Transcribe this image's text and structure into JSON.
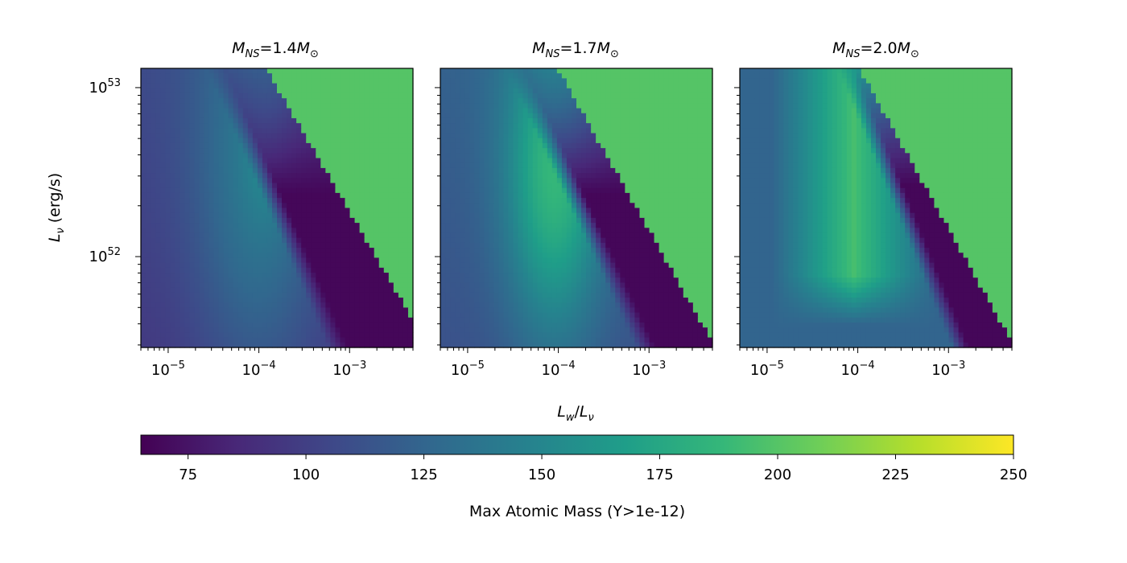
{
  "chart_data": {
    "type": "heatmap",
    "x_scale": "log",
    "y_scale": "log",
    "xlim": [
      5e-06,
      0.005
    ],
    "ylim": [
      2.9e+51,
      1.3e+53
    ],
    "xlabel": {
      "base": "L",
      "sub": "w",
      "slash": "/",
      "base2": "L",
      "sub2": "ν"
    },
    "ylabel": "Lν (erg/s)",
    "ylabel_parts": {
      "base": "L",
      "sub": "ν",
      "unit": " (erg/s)"
    },
    "x_ticks": [
      {
        "value": 1e-05,
        "base": "10",
        "exp": "−5"
      },
      {
        "value": 0.0001,
        "base": "10",
        "exp": "−4"
      },
      {
        "value": 0.001,
        "base": "10",
        "exp": "−3"
      }
    ],
    "y_ticks": [
      {
        "value": 1e+52,
        "base": "10",
        "exp": "52"
      },
      {
        "value": 1e+53,
        "base": "10",
        "exp": "53"
      }
    ],
    "panels": [
      {
        "mass_prefix": "M",
        "mass_sub": "NS",
        "mass_value": "=1.4",
        "mass_unit": "M",
        "mass_unit_sub": "⊙"
      },
      {
        "mass_prefix": "M",
        "mass_sub": "NS",
        "mass_value": "=1.7",
        "mass_unit": "M",
        "mass_unit_sub": "⊙"
      },
      {
        "mass_prefix": "M",
        "mass_sub": "NS",
        "mass_value": "=2.0",
        "mass_unit": "M",
        "mass_unit_sub": "⊙"
      }
    ],
    "colorbar": {
      "label": "Max Atomic Mass (Y>1e-12)",
      "range": [
        65,
        250
      ],
      "ticks": [
        "75",
        "100",
        "125",
        "150",
        "175",
        "200",
        "225",
        "250"
      ],
      "tick_values": [
        75,
        100,
        125,
        150,
        175,
        200,
        225,
        250
      ],
      "colormap": "viridis",
      "colormap_stops": [
        "#440154",
        "#482878",
        "#3e4989",
        "#31688e",
        "#26828e",
        "#1f9e89",
        "#35b779",
        "#6ece58",
        "#b5de2b",
        "#fde725"
      ]
    },
    "approx_field_notes": {
      "panel_1": "broad ~115-150 band peaking ~160 near Lw/Lv 1e-4; deep minimum ~65-75 at Lw/Lv ~1e-3..5e-3 and low L; plateau ~200 top-right",
      "panel_2": "ridge ~170-190 centered near 1e-4; minimum ~65-75 near 1e-3..5e-3; plateau ~200 top-right",
      "panel_3": "U-shaped band ~185-200 spanning 1e-5..1e-3; minimum ~65-75 near 1e-3..5e-3; plateau ~200 top-right"
    }
  }
}
